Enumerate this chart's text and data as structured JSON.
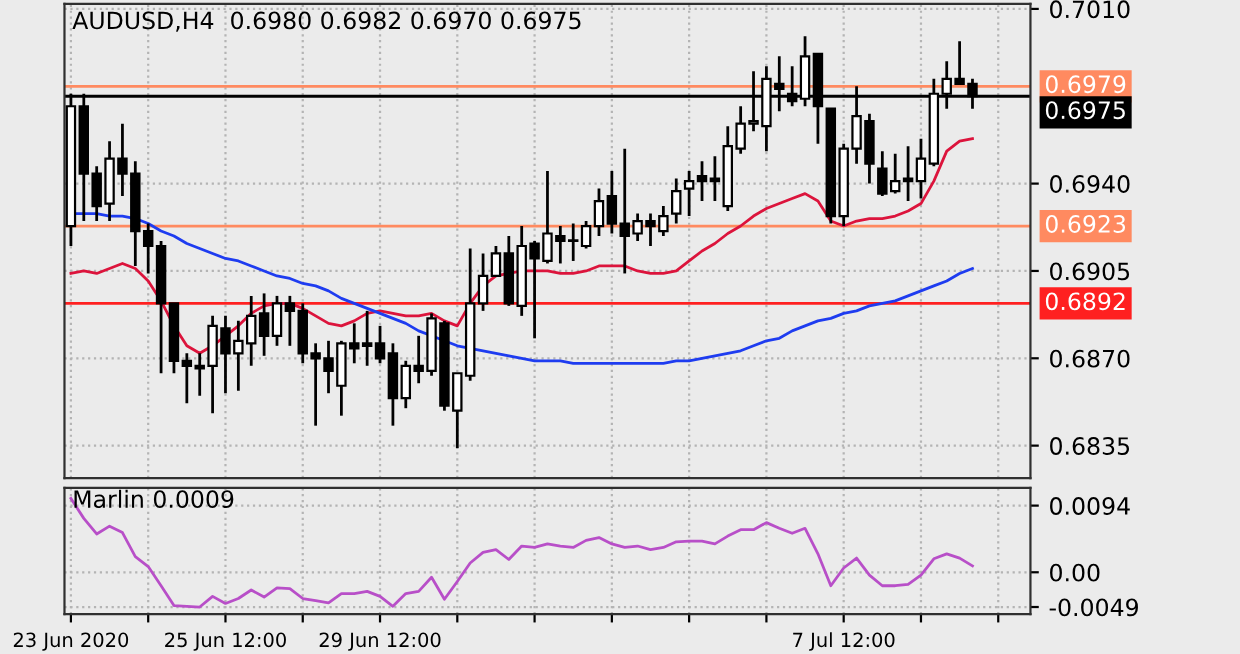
{
  "chart_data": [
    {
      "type": "candlestick",
      "title": "AUDUSD,H4  0.6980 0.6982 0.6970 0.6975",
      "categories": [
        null,
        null,
        null,
        null,
        null,
        null,
        null,
        null,
        null,
        null,
        null,
        null,
        null,
        null,
        null,
        null,
        null,
        null,
        null,
        null,
        null,
        null,
        null,
        null,
        null,
        null,
        null,
        null,
        null,
        null,
        null,
        null,
        null,
        null,
        null,
        null,
        null,
        null,
        null,
        null,
        null,
        null,
        null,
        null,
        null,
        null,
        null,
        null,
        null,
        null,
        null,
        null,
        null,
        null,
        null,
        null,
        null,
        null,
        null,
        null,
        null,
        null,
        null,
        null,
        null,
        null,
        null,
        null,
        null,
        null,
        null,
        null,
        null,
        null,
        null
      ],
      "ohlc": [
        [
          0.6923,
          0.6976,
          0.6915,
          0.6971
        ],
        [
          0.6971,
          0.6976,
          0.6925,
          0.6944
        ],
        [
          0.6944,
          0.6947,
          0.6925,
          0.6931
        ],
        [
          0.6932,
          0.6957,
          0.6925,
          0.695
        ],
        [
          0.695,
          0.6964,
          0.6935,
          0.6944
        ],
        [
          0.6944,
          0.6949,
          0.6907,
          0.6921
        ],
        [
          0.6921,
          0.6924,
          0.6904,
          0.6915
        ],
        [
          0.6915,
          0.6917,
          0.6864,
          0.6892
        ],
        [
          0.6892,
          0.6892,
          0.6864,
          0.6869
        ],
        [
          0.6869,
          0.6872,
          0.6852,
          0.6867
        ],
        [
          0.6867,
          0.6872,
          0.6855,
          0.6866
        ],
        [
          0.6867,
          0.6887,
          0.6848,
          0.6883
        ],
        [
          0.6882,
          0.6887,
          0.6856,
          0.6872
        ],
        [
          0.6872,
          0.6885,
          0.6857,
          0.6877
        ],
        [
          0.6876,
          0.6895,
          0.6867,
          0.6887
        ],
        [
          0.6888,
          0.6896,
          0.6871,
          0.6879
        ],
        [
          0.6879,
          0.6895,
          0.6875,
          0.6892
        ],
        [
          0.6892,
          0.6895,
          0.6875,
          0.6889
        ],
        [
          0.6889,
          0.6892,
          0.6868,
          0.6872
        ],
        [
          0.6872,
          0.6876,
          0.6843,
          0.687
        ],
        [
          0.687,
          0.6877,
          0.6856,
          0.6865
        ],
        [
          0.6859,
          0.6877,
          0.6847,
          0.6876
        ],
        [
          0.6876,
          0.6884,
          0.6868,
          0.6874
        ],
        [
          0.6876,
          0.6889,
          0.6867,
          0.6875
        ],
        [
          0.6876,
          0.6883,
          0.6868,
          0.687
        ],
        [
          0.6872,
          0.6876,
          0.6843,
          0.6854
        ],
        [
          0.6854,
          0.6869,
          0.685,
          0.6867
        ],
        [
          0.6867,
          0.6879,
          0.686,
          0.6865
        ],
        [
          0.6865,
          0.6888,
          0.6863,
          0.6886
        ],
        [
          0.6884,
          0.6885,
          0.6849,
          0.6851
        ],
        [
          0.6849,
          0.6864,
          0.6834,
          0.6864
        ],
        [
          0.6863,
          0.6914,
          0.6861,
          0.6892
        ],
        [
          0.6892,
          0.6912,
          0.6889,
          0.6903
        ],
        [
          0.6903,
          0.6915,
          0.6903,
          0.6912
        ],
        [
          0.6912,
          0.6919,
          0.6891,
          0.6892
        ],
        [
          0.6891,
          0.6923,
          0.6887,
          0.6915
        ],
        [
          0.6916,
          0.6917,
          0.6878,
          0.691
        ],
        [
          0.6909,
          0.6945,
          0.6908,
          0.692
        ],
        [
          0.6919,
          0.6923,
          0.6908,
          0.6917
        ],
        [
          0.6917,
          0.6924,
          0.6909,
          0.6917
        ],
        [
          0.6915,
          0.6925,
          0.6914,
          0.6923
        ],
        [
          0.6923,
          0.6938,
          0.6919,
          0.6933
        ],
        [
          0.6935,
          0.6945,
          0.692,
          0.6924
        ],
        [
          0.6924,
          0.6954,
          0.6904,
          0.6919
        ],
        [
          0.692,
          0.6928,
          0.6917,
          0.6925
        ],
        [
          0.6925,
          0.6928,
          0.6915,
          0.6923
        ],
        [
          0.6921,
          0.6931,
          0.6919,
          0.6927
        ],
        [
          0.6928,
          0.6942,
          0.6924,
          0.6937
        ],
        [
          0.6938,
          0.6945,
          0.6927,
          0.6941
        ],
        [
          0.6943,
          0.6949,
          0.6933,
          0.6941
        ],
        [
          0.6942,
          0.6951,
          0.6933,
          0.6941
        ],
        [
          0.6931,
          0.6963,
          0.6929,
          0.6955
        ],
        [
          0.6954,
          0.6971,
          0.6952,
          0.6964
        ],
        [
          0.6964,
          0.6985,
          0.6961,
          0.6965
        ],
        [
          0.6963,
          0.6987,
          0.6953,
          0.6982
        ],
        [
          0.698,
          0.6991,
          0.6969,
          0.6978
        ],
        [
          0.6976,
          0.6987,
          0.6971,
          0.6973
        ],
        [
          0.6974,
          0.6999,
          0.6971,
          0.6991
        ],
        [
          0.6992,
          0.6992,
          0.6956,
          0.6971
        ],
        [
          0.697,
          0.697,
          0.6924,
          0.6927
        ],
        [
          0.6927,
          0.6956,
          0.6923,
          0.6954
        ],
        [
          0.6954,
          0.6979,
          0.6948,
          0.6967
        ],
        [
          0.6965,
          0.6968,
          0.694,
          0.6948
        ],
        [
          0.6946,
          0.6953,
          0.6935,
          0.6936
        ],
        [
          0.6937,
          0.6952,
          0.6936,
          0.6941
        ],
        [
          0.6942,
          0.6955,
          0.6933,
          0.6941
        ],
        [
          0.6941,
          0.6958,
          0.6934,
          0.695
        ],
        [
          0.6948,
          0.6982,
          0.6947,
          0.6976
        ],
        [
          0.6976,
          0.6989,
          0.697,
          0.6982
        ],
        [
          0.6982,
          0.6997,
          0.698,
          0.698
        ],
        [
          0.698,
          0.6982,
          0.697,
          0.6975
        ],
        null,
        null,
        null,
        null
      ],
      "series": [
        {
          "type": "line",
          "color": "#dc143c",
          "values": [
            0.6904,
            0.6905,
            0.6904,
            0.6906,
            0.6908,
            0.6906,
            0.6901,
            0.6893,
            0.6883,
            0.6875,
            0.6872,
            0.6875,
            0.6879,
            0.6883,
            0.6888,
            0.6891,
            0.6892,
            0.6892,
            0.689,
            0.6887,
            0.6884,
            0.6883,
            0.6885,
            0.6888,
            0.6889,
            0.6888,
            0.6887,
            0.6887,
            0.6888,
            0.6885,
            0.6883,
            0.6892,
            0.6899,
            0.6903,
            0.6904,
            0.6905,
            0.6905,
            0.6905,
            0.6904,
            0.6904,
            0.6905,
            0.6907,
            0.6907,
            0.6907,
            0.6905,
            0.6904,
            0.6904,
            0.6905,
            0.6909,
            0.6913,
            0.6916,
            0.692,
            0.6923,
            0.6927,
            0.693,
            0.6932,
            0.6934,
            0.6936,
            0.6933,
            0.6925,
            0.6923,
            0.6925,
            0.6926,
            0.6926,
            0.6927,
            0.6929,
            0.6932,
            0.6941,
            0.6953,
            0.6957,
            0.6958,
            null,
            null,
            null,
            null
          ]
        },
        {
          "type": "line",
          "color": "#1e3cf0",
          "values": [
            0.6928,
            0.6928,
            0.6928,
            0.6927,
            0.6927,
            0.6926,
            0.6924,
            0.6921,
            0.6919,
            0.6916,
            0.6914,
            0.6912,
            0.691,
            0.6909,
            0.6907,
            0.6905,
            0.6903,
            0.6902,
            0.69,
            0.6899,
            0.6897,
            0.6894,
            0.6892,
            0.689,
            0.6888,
            0.6886,
            0.6884,
            0.6881,
            0.6879,
            0.6877,
            0.6875,
            0.6874,
            0.6873,
            0.6872,
            0.6871,
            0.687,
            0.6869,
            0.6869,
            0.6869,
            0.6868,
            0.6868,
            0.6868,
            0.6868,
            0.6868,
            0.6868,
            0.6868,
            0.6868,
            0.6869,
            0.6869,
            0.687,
            0.6871,
            0.6872,
            0.6873,
            0.6875,
            0.6877,
            0.6878,
            0.6881,
            0.6883,
            0.6885,
            0.6886,
            0.6888,
            0.6889,
            0.6891,
            0.6892,
            0.6893,
            0.6895,
            0.6897,
            0.6899,
            0.6901,
            0.6904,
            0.6906,
            null,
            null,
            null,
            null
          ]
        }
      ],
      "ref_lines": [
        {
          "axis": "y",
          "value": 0.6979,
          "label": "0.6979",
          "color": "#ff8a60"
        },
        {
          "axis": "y",
          "value": 0.6975,
          "label": "0.6975",
          "color": "#000000"
        },
        {
          "axis": "y",
          "value": 0.6923,
          "label": "0.6923",
          "color": "#ff8a60"
        },
        {
          "axis": "y",
          "value": 0.6892,
          "label": "0.6892",
          "color": "#ff2020"
        }
      ],
      "ylim": [
        0.6822,
        0.7012
      ],
      "yticks": [
        {
          "value": 0.701,
          "label": "0.7010"
        },
        {
          "value": 0.694,
          "label": "0.6940"
        },
        {
          "value": 0.6905,
          "label": "0.6905"
        },
        {
          "value": 0.687,
          "label": "0.6870"
        },
        {
          "value": 0.6835,
          "label": "0.6835"
        }
      ],
      "grid": true,
      "tick_labels": "y"
    },
    {
      "type": "line",
      "title": "Marlin 0.0009",
      "color": "#b84fc8",
      "categories": [
        "23 Jun 2020",
        null,
        null,
        null,
        null,
        null,
        null,
        null,
        null,
        null,
        null,
        null,
        "25 Jun 12:00",
        null,
        null,
        null,
        null,
        null,
        null,
        null,
        null,
        null,
        null,
        null,
        "29 Jun 12:00",
        null,
        null,
        null,
        null,
        null,
        null,
        null,
        null,
        null,
        null,
        null,
        null,
        null,
        null,
        null,
        null,
        null,
        null,
        null,
        null,
        null,
        null,
        null,
        null,
        null,
        null,
        null,
        null,
        null,
        null,
        null,
        null,
        null,
        null,
        null,
        "7 Jul 12:00",
        null,
        null,
        null,
        null,
        null,
        null,
        null,
        null,
        null,
        null,
        null,
        null,
        null,
        null
      ],
      "values": [
        0.0104,
        0.0076,
        0.0054,
        0.0065,
        0.0056,
        0.0022,
        0.0008,
        -0.0019,
        -0.0047,
        -0.0048,
        -0.0049,
        -0.0034,
        -0.0044,
        -0.0037,
        -0.0025,
        -0.0035,
        -0.0022,
        -0.0023,
        -0.0037,
        -0.004,
        -0.0043,
        -0.003,
        -0.003,
        -0.0027,
        -0.0034,
        -0.0048,
        -0.003,
        -0.0027,
        -0.0007,
        -0.0038,
        -0.0013,
        0.0013,
        0.0028,
        0.0032,
        0.0018,
        0.0037,
        0.0035,
        0.004,
        0.0037,
        0.0035,
        0.0045,
        0.0049,
        0.004,
        0.0035,
        0.0037,
        0.0032,
        0.0035,
        0.0043,
        0.0044,
        0.0044,
        0.004,
        0.0051,
        0.006,
        0.006,
        0.007,
        0.0062,
        0.0055,
        0.0062,
        0.0026,
        -0.0019,
        0.0006,
        0.002,
        -0.0004,
        -0.0019,
        -0.0019,
        -0.0017,
        -0.0004,
        0.0019,
        0.0026,
        0.002,
        0.0009,
        null,
        null,
        null,
        null
      ],
      "ylim": [
        -0.0059,
        0.0119
      ],
      "yticks": [
        0.0094,
        {
          "value": 0,
          "label": "0.00"
        },
        {
          "value": -0.0049,
          "label": "-0.0049"
        }
      ],
      "grid": true
    }
  ]
}
